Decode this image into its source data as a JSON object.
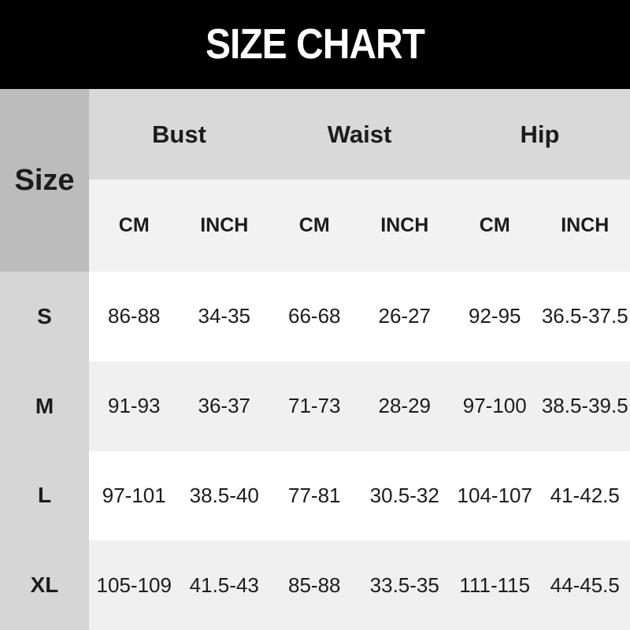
{
  "title": "SIZE CHART",
  "table": {
    "corner_label": "Size",
    "groups": [
      {
        "label": "Bust"
      },
      {
        "label": "Waist"
      },
      {
        "label": "Hip"
      }
    ],
    "unit_headers": [
      "CM",
      "INCH",
      "CM",
      "INCH",
      "CM",
      "INCH"
    ],
    "rows": [
      {
        "size": "S",
        "values": [
          "86-88",
          "34-35",
          "66-68",
          "26-27",
          "92-95",
          "36.5-37.5"
        ]
      },
      {
        "size": "M",
        "values": [
          "91-93",
          "36-37",
          "71-73",
          "28-29",
          "97-100",
          "38.5-39.5"
        ]
      },
      {
        "size": "L",
        "values": [
          "97-101",
          "38.5-40",
          "77-81",
          "30.5-32",
          "104-107",
          "41-42.5"
        ]
      },
      {
        "size": "XL",
        "values": [
          "105-109",
          "41.5-43",
          "85-88",
          "33.5-35",
          "111-115",
          "44-45.5"
        ]
      }
    ]
  },
  "colors": {
    "banner_bg": "#000000",
    "banner_text": "#ffffff",
    "corner_bg": "#bcbcbc",
    "group_header_bg": "#d9d9d9",
    "unit_header_bg": "#f2f2f2",
    "size_column_bg": "#d6d6d6",
    "row_bg_odd": "#ffffff",
    "row_bg_even": "#f0f0f0",
    "text": "#1c1c1c"
  },
  "chart_data": {
    "type": "table",
    "title": "SIZE CHART",
    "columns": [
      "Size",
      "Bust CM",
      "Bust INCH",
      "Waist CM",
      "Waist INCH",
      "Hip CM",
      "Hip INCH"
    ],
    "rows": [
      [
        "S",
        "86-88",
        "34-35",
        "66-68",
        "26-27",
        "92-95",
        "36.5-37.5"
      ],
      [
        "M",
        "91-93",
        "36-37",
        "71-73",
        "28-29",
        "97-100",
        "38.5-39.5"
      ],
      [
        "L",
        "97-101",
        "38.5-40",
        "77-81",
        "30.5-32",
        "104-107",
        "41-42.5"
      ],
      [
        "XL",
        "105-109",
        "41.5-43",
        "85-88",
        "33.5-35",
        "111-115",
        "44-45.5"
      ]
    ]
  }
}
